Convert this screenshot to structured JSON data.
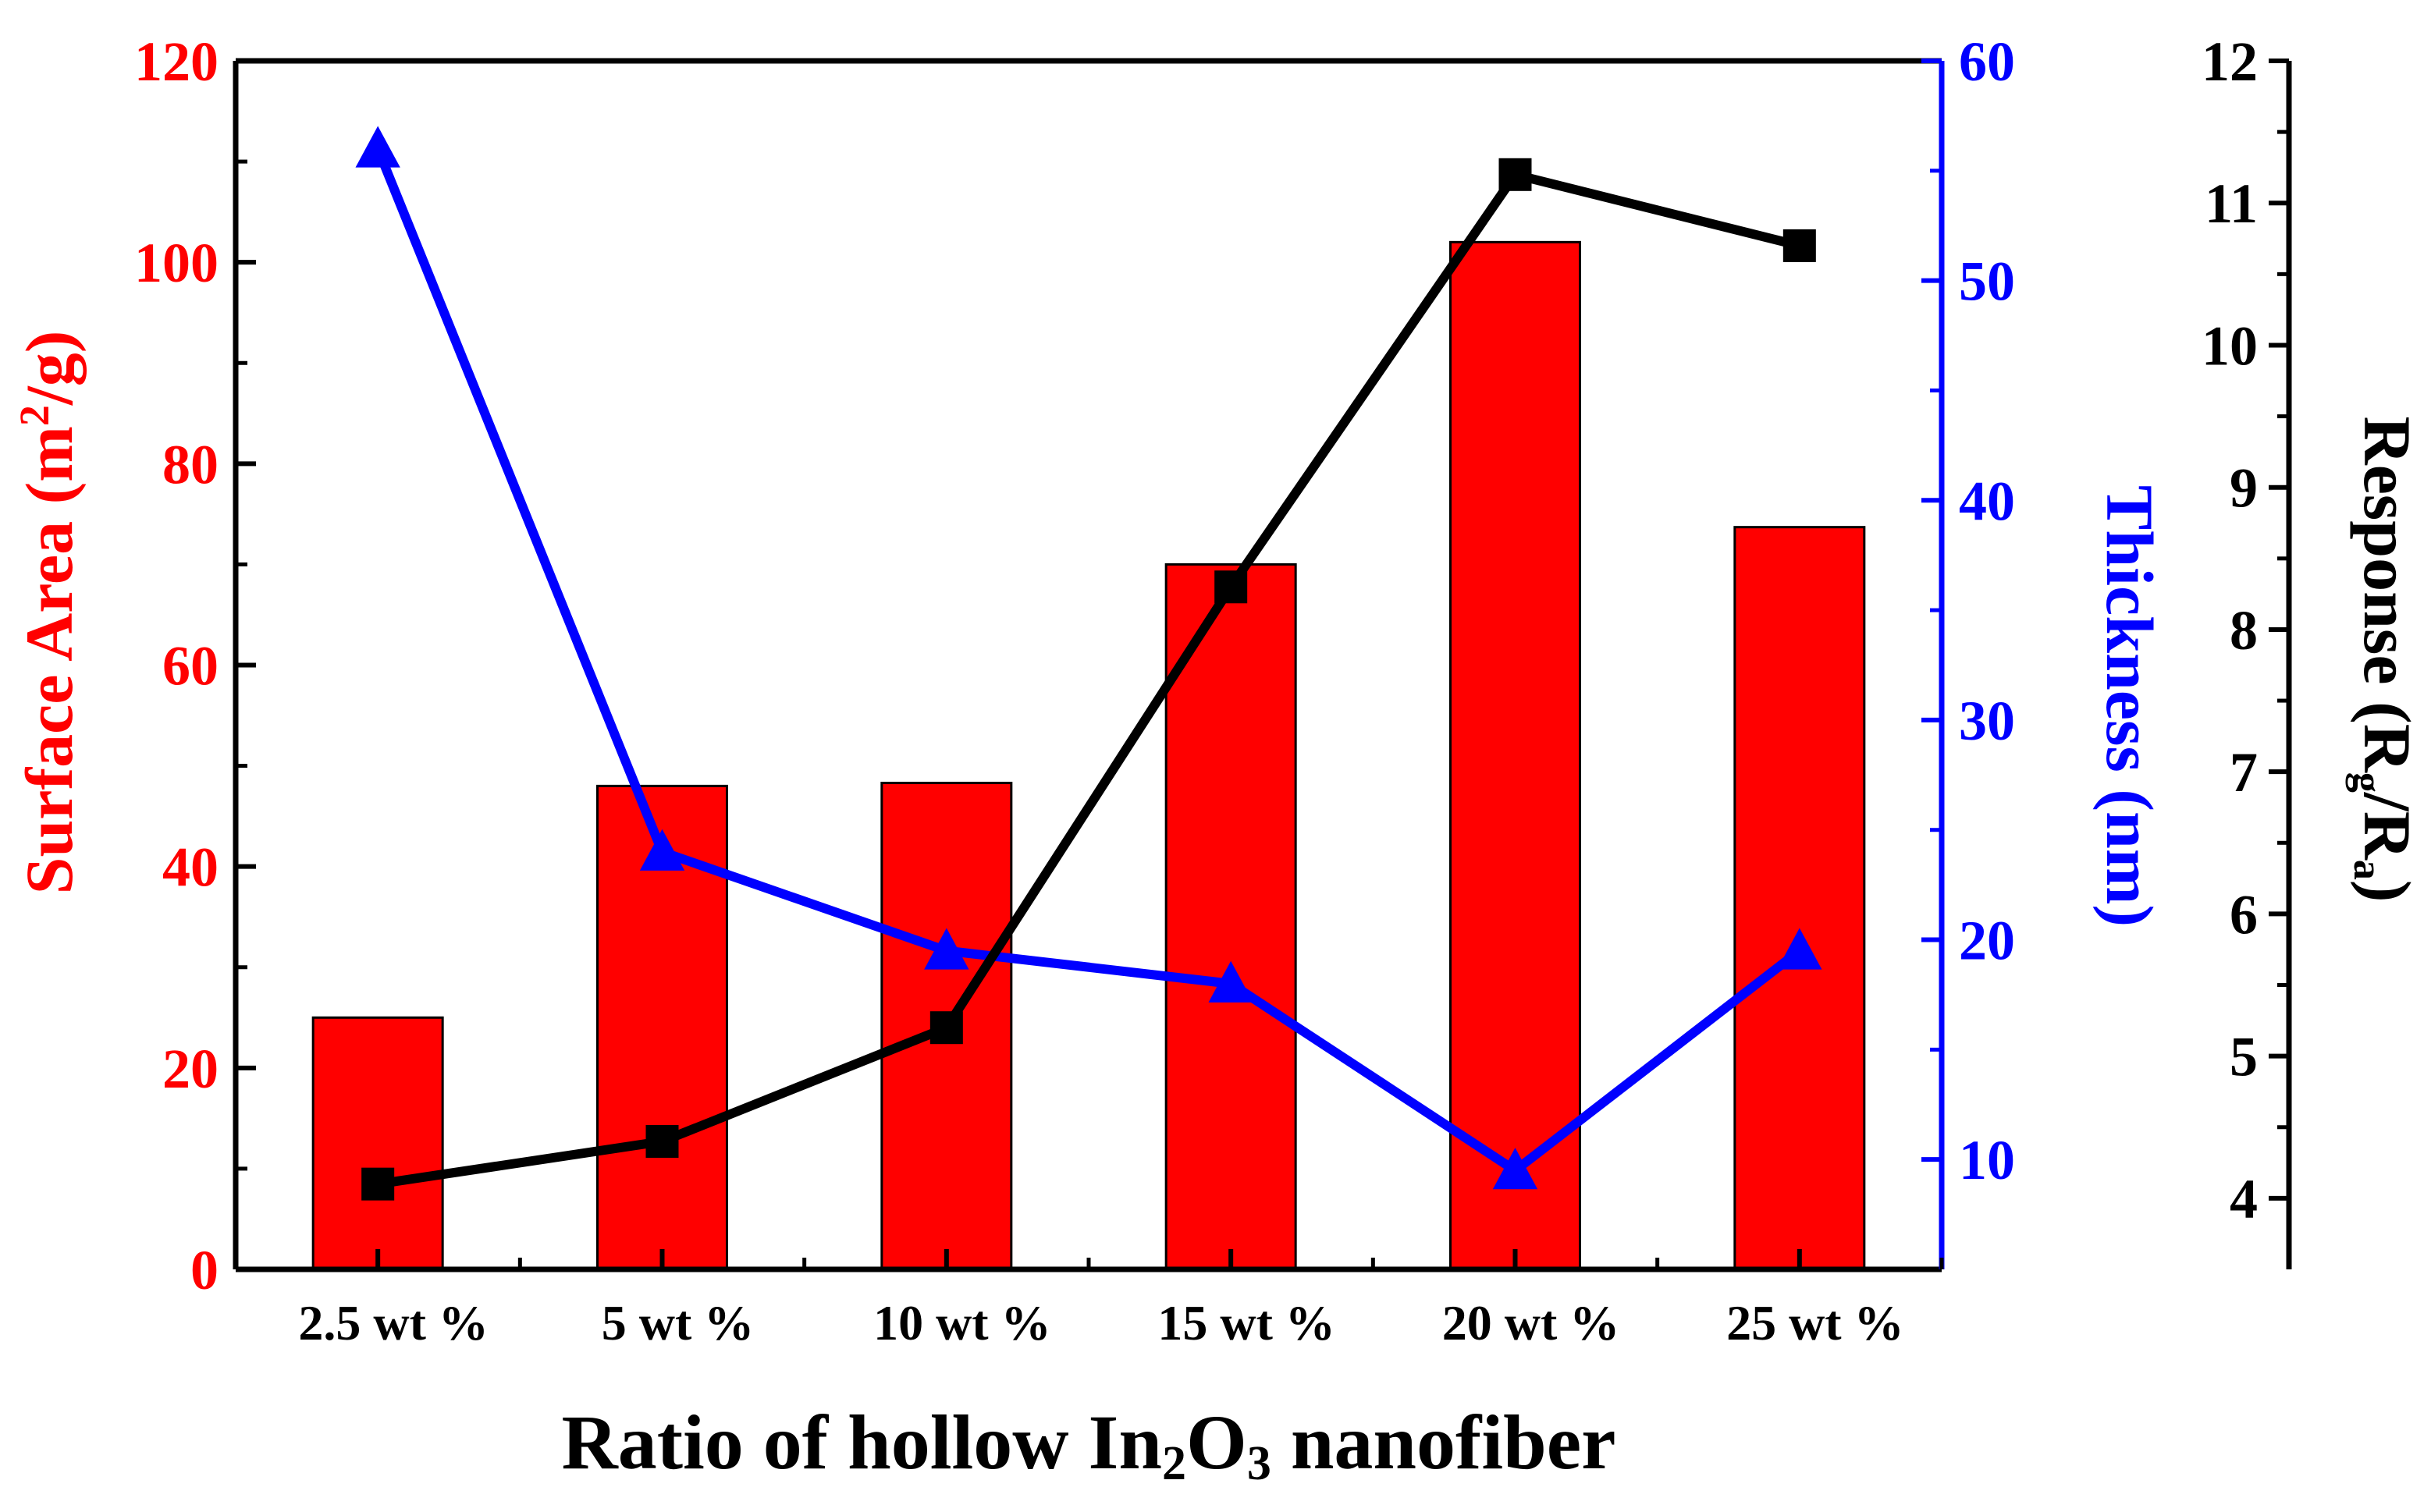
{
  "chart_data": {
    "type": "bar",
    "categories": [
      "2.5 wt %",
      "5 wt %",
      "10 wt %",
      "15 wt %",
      "20 wt %",
      "25 wt %"
    ],
    "series": [
      {
        "name": "Surface Area",
        "type": "bar",
        "axis": "left",
        "color": "#ff0000",
        "values": [
          25,
          48,
          48.3,
          70,
          102,
          73.7
        ]
      },
      {
        "name": "Thickness",
        "type": "line",
        "axis": "right",
        "color": "#0000ff",
        "marker": "triangle",
        "values": [
          56,
          24,
          19.5,
          18,
          9.5,
          19.5
        ]
      },
      {
        "name": "Response",
        "type": "line",
        "axis": "far-right",
        "color": "#000000",
        "marker": "square",
        "values": [
          4.1,
          4.4,
          5.2,
          8.3,
          11.2,
          10.7
        ]
      }
    ],
    "xlabel": {
      "main": "Ratio of hollow In",
      "sub1": "2",
      "mid": "O",
      "sub2": "3",
      "end": " nanofiber"
    },
    "axes": {
      "left": {
        "label": {
          "main": "Surface Area (m",
          "sup": "2",
          "end": "/g)"
        },
        "range": [
          0,
          120
        ],
        "ticks": [
          0,
          20,
          40,
          60,
          80,
          100,
          120
        ],
        "color": "#ff0000"
      },
      "right": {
        "label": "Thickness (nm)",
        "range": [
          5,
          60
        ],
        "ticks": [
          10,
          20,
          30,
          40,
          50,
          60
        ],
        "color": "#0000ff"
      },
      "far_right": {
        "label": {
          "main": "Response (R",
          "sub1": "g",
          "mid": "/R",
          "sub2": "a",
          "end": ")"
        },
        "range": [
          3.5,
          12
        ],
        "ticks": [
          4,
          5,
          6,
          7,
          8,
          9,
          10,
          11,
          12
        ],
        "color": "#000000"
      }
    },
    "grid": false,
    "legend": "none"
  }
}
